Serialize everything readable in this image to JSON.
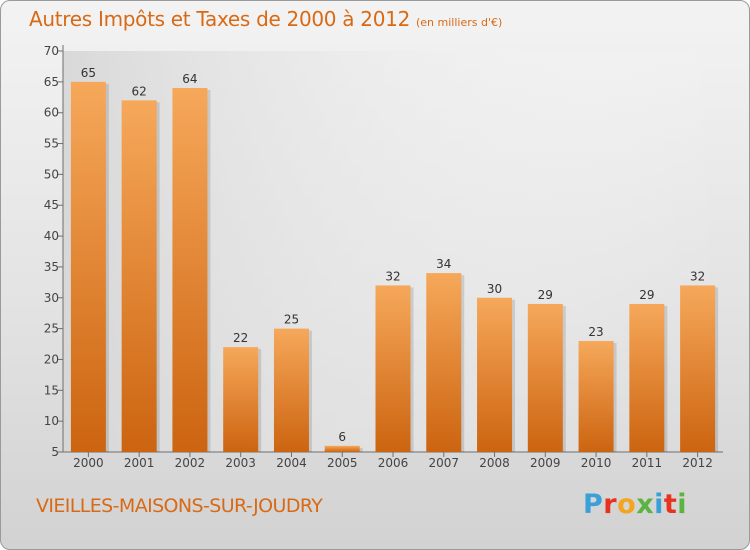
{
  "title": "Autres Impôts et Taxes de 2000 à 2012",
  "subtitle": "(en milliers d'€)",
  "commune": "VIEILLES-MAISONS-SUR-JOUDRY",
  "logo": "Proxiti",
  "colors": {
    "title": "#d86a16",
    "bar_top": "#f6a85a",
    "bar_bottom": "#cc6410",
    "background_top": "#f3f3f3",
    "background_bottom": "#d2d2d2"
  },
  "chart_data": {
    "type": "bar",
    "title": "Autres Impôts et Taxes de 2000 à 2012",
    "subtitle": "(en milliers d'€)",
    "categories": [
      "2000",
      "2001",
      "2002",
      "2003",
      "2004",
      "2005",
      "2006",
      "2007",
      "2008",
      "2009",
      "2010",
      "2011",
      "2012"
    ],
    "values": [
      65,
      62,
      64,
      22,
      25,
      6,
      32,
      34,
      30,
      29,
      23,
      29,
      32
    ],
    "ylim": [
      5,
      70
    ],
    "yticks": [
      5,
      10,
      15,
      20,
      25,
      30,
      35,
      40,
      45,
      50,
      55,
      60,
      65,
      70
    ],
    "grid": false,
    "data_labels": true
  }
}
